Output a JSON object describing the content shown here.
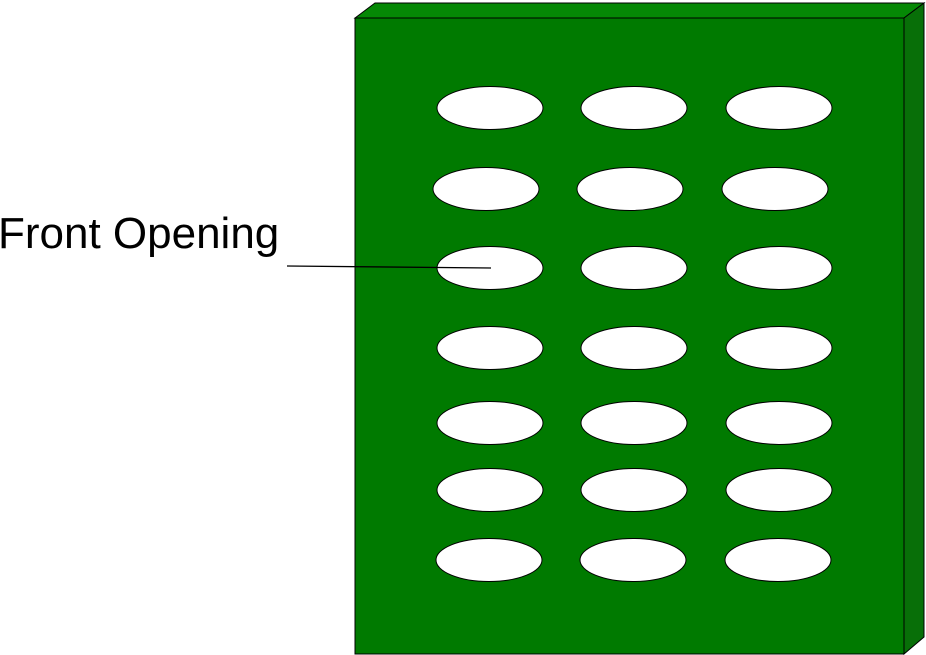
{
  "label": {
    "text": "Front Opening"
  },
  "colors": {
    "panel_front": "#007a00",
    "panel_top": "#058805",
    "panel_side": "#086f08",
    "outline": "#000000",
    "opening_fill": "#ffffff",
    "label_text": "#000000",
    "background": "#ffffff"
  },
  "openings": {
    "rows": 7,
    "columns": 3
  }
}
